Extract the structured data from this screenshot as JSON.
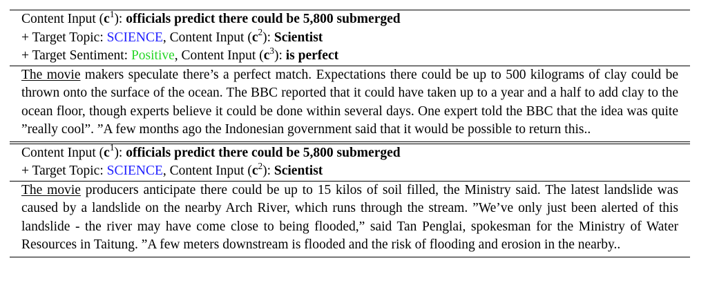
{
  "block1": {
    "line1": {
      "prefix": "Content Input (",
      "var": "c",
      "sup": "1",
      "suffix": "): ",
      "value": "officials predict there could be 5,800 submerged"
    },
    "line2": {
      "prefix": "+ Target Topic: ",
      "topic": "SCIENCE",
      "mid": ", Content Input (",
      "var": "c",
      "sup": "2",
      "suffix": "): ",
      "value": "Scientist"
    },
    "line3": {
      "prefix": "+ Target Sentiment: ",
      "sentiment": "Positive",
      "mid": ", Content Input (",
      "var": "c",
      "sup": "3",
      "suffix": "): ",
      "value": "is perfect"
    },
    "output_prompt": "The movie",
    "output_text": " makers speculate there’s a perfect match. Expectations there could be up to 500 kilograms of clay could be thrown onto the surface of the ocean. The BBC reported that it could have taken up to a year and a half to add clay to the ocean floor, though experts believe it could be done within several days. One expert told the BBC that the idea was quite ”really cool”. ”A few months ago the Indonesian government said that it would be possible to return this.."
  },
  "block2": {
    "line1": {
      "prefix": "Content Input (",
      "var": "c",
      "sup": "1",
      "suffix": "): ",
      "value": "officials predict there could be 5,800 submerged"
    },
    "line2": {
      "prefix": "+ Target Topic: ",
      "topic": "SCIENCE",
      "mid": ", Content Input (",
      "var": "c",
      "sup": "2",
      "suffix": "): ",
      "value": "Scientist"
    },
    "output_prompt": "The movie",
    "output_text": " producers anticipate there could be up to 15 kilos of soil filled, the Ministry said. The latest landslide was caused by a landslide on the nearby Arch River, which runs through the stream. ”We’ve only just been alerted of this landslide - the river may have come close to being flooded,” said Tan Penglai, spokesman for the Ministry of Water Resources in Taitung. ”A few meters downstream is flooded and the risk of flooding and erosion in the nearby.."
  },
  "colors": {
    "topic": "#1f1fff",
    "sentiment": "#27d627"
  }
}
